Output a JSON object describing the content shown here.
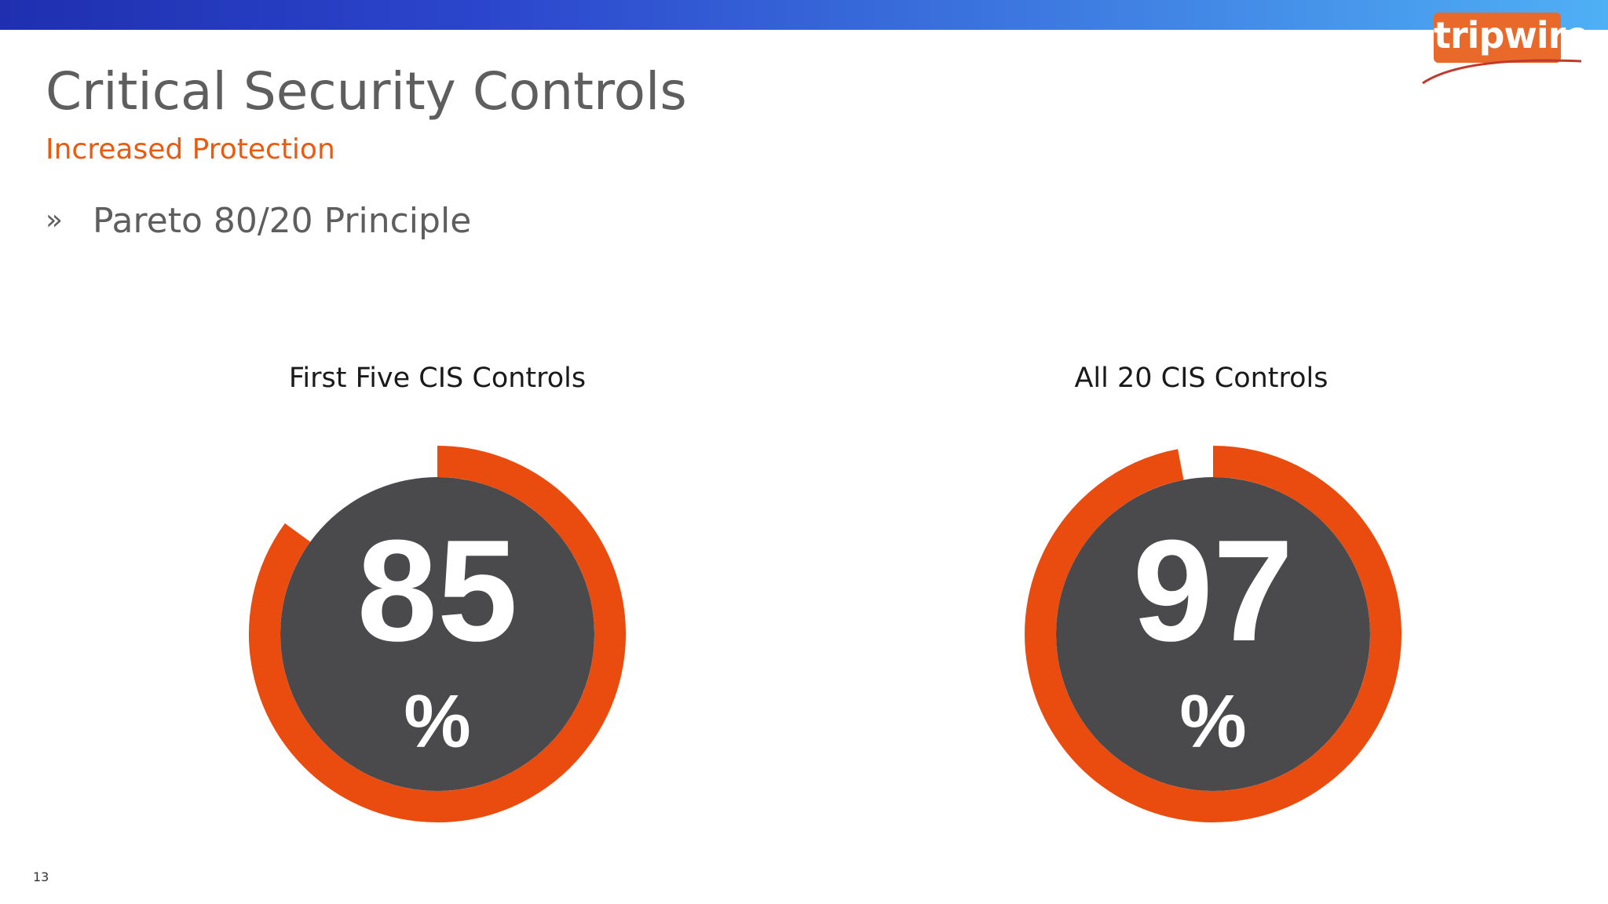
{
  "logo": {
    "text": "tripwire"
  },
  "slide": {
    "title": "Critical Security Controls",
    "subtitle": "Increased Protection",
    "bullets": [
      {
        "glyph": "»",
        "text": "Pareto 80/20 Principle"
      }
    ],
    "page_number": "13"
  },
  "gauges": [
    {
      "label": "First Five CIS Controls",
      "value": 85,
      "value_text": "85",
      "unit": "%"
    },
    {
      "label": "All 20 CIS Controls",
      "value": 97,
      "value_text": "97",
      "unit": "%"
    }
  ],
  "colors": {
    "accent": "#ea4b0e",
    "gauge_fill": "#4a494b",
    "header_bar_start": "#1f2fb0",
    "header_bar_end": "#4fb0f5",
    "logo": "#e8692a"
  }
}
